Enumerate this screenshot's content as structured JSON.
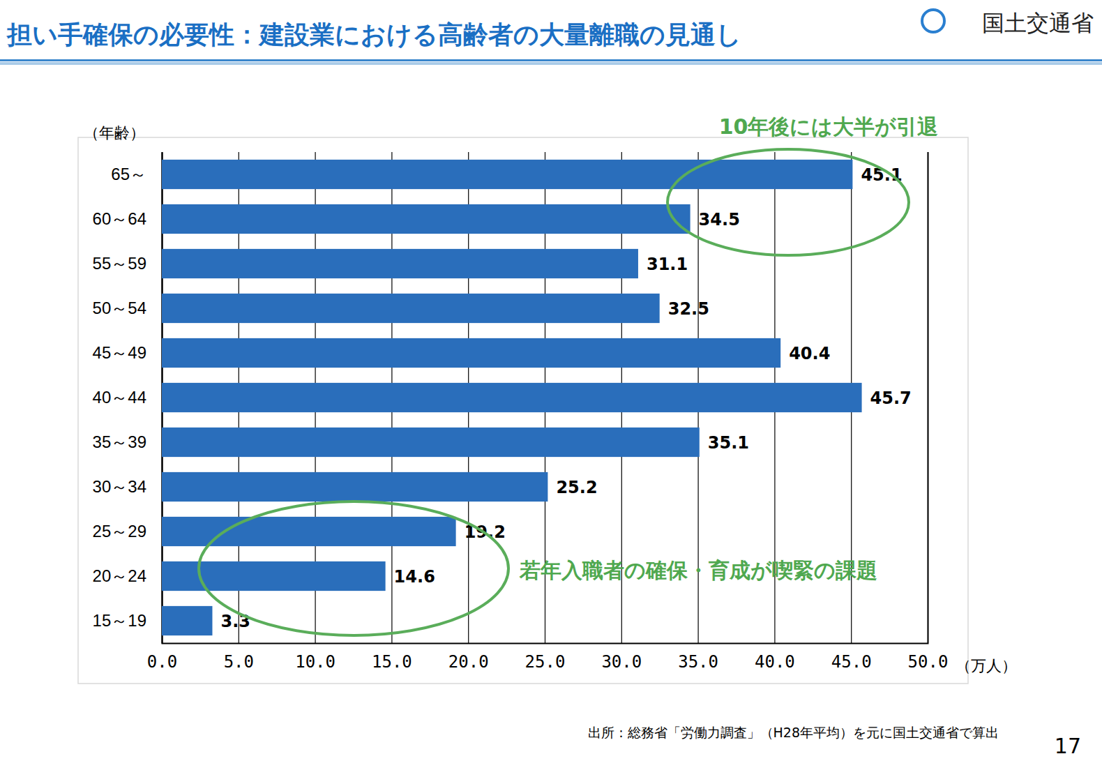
{
  "chart_data": {
    "type": "bar",
    "orientation": "horizontal",
    "title": "担い手確保の必要性：建設業における高齢者の大量離職の見通し",
    "logo_text": "国土交通省",
    "y_label": "（年齢）",
    "x_label": "（万人）",
    "categories": [
      "65～",
      "60～64",
      "55～59",
      "50～54",
      "45～49",
      "40～44",
      "35～39",
      "30～34",
      "25～29",
      "20～24",
      "15～19"
    ],
    "values": [
      45.1,
      34.5,
      31.1,
      32.5,
      40.4,
      45.7,
      35.1,
      25.2,
      19.2,
      14.6,
      3.3
    ],
    "color": "#2a6ebb",
    "xlim": [
      0,
      50
    ],
    "xticks": [
      {
        "value": 0,
        "label": "0.0"
      },
      {
        "value": 5,
        "label": "5.0"
      },
      {
        "value": 10,
        "label": "10.0"
      },
      {
        "value": 15,
        "label": "15.0"
      },
      {
        "value": 20,
        "label": "20.0"
      },
      {
        "value": 25,
        "label": "25.0"
      },
      {
        "value": 30,
        "label": "30.0"
      },
      {
        "value": 35,
        "label": "35.0"
      },
      {
        "value": 40,
        "label": "40.0"
      },
      {
        "value": 45,
        "label": "45.0"
      },
      {
        "value": 50,
        "label": "50.0"
      }
    ],
    "grid": true,
    "data_labels": true,
    "annotations": [
      "10年後には大半が引退",
      "若年入職者の確保・育成が喫緊の課題"
    ],
    "source": "出所：総務省「労働力調査」（H28年平均）を元に国土交通省で算出",
    "page_number": "17"
  }
}
